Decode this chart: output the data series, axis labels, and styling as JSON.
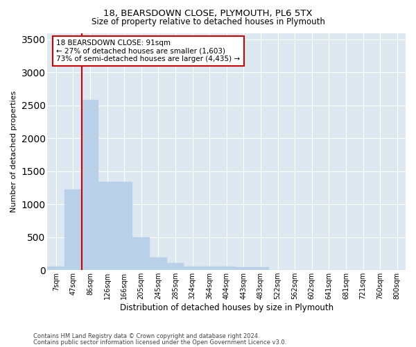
{
  "title1": "18, BEARSDOWN CLOSE, PLYMOUTH, PL6 5TX",
  "title2": "Size of property relative to detached houses in Plymouth",
  "xlabel": "Distribution of detached houses by size in Plymouth",
  "ylabel": "Number of detached properties",
  "bar_labels": [
    "7sqm",
    "47sqm",
    "86sqm",
    "126sqm",
    "166sqm",
    "205sqm",
    "245sqm",
    "285sqm",
    "324sqm",
    "364sqm",
    "404sqm",
    "443sqm",
    "483sqm",
    "522sqm",
    "562sqm",
    "602sqm",
    "641sqm",
    "681sqm",
    "721sqm",
    "760sqm",
    "800sqm"
  ],
  "bar_values": [
    55,
    1220,
    2580,
    1340,
    1335,
    500,
    195,
    110,
    55,
    50,
    50,
    40,
    40,
    0,
    0,
    0,
    0,
    0,
    0,
    0,
    0
  ],
  "bar_color": "#b8d0e8",
  "bar_edgecolor": "#b8d0e8",
  "vline_x_idx": 2,
  "vline_color": "#cc0000",
  "annotation_text": "18 BEARSDOWN CLOSE: 91sqm\n← 27% of detached houses are smaller (1,603)\n73% of semi-detached houses are larger (4,435) →",
  "annotation_box_color": "#ffffff",
  "annotation_box_edgecolor": "#cc0000",
  "ylim": [
    0,
    3600
  ],
  "yticks": [
    0,
    500,
    1000,
    1500,
    2000,
    2500,
    3000,
    3500
  ],
  "bg_color": "#dde8f0",
  "grid_color": "#ffffff",
  "footer1": "Contains HM Land Registry data © Crown copyright and database right 2024.",
  "footer2": "Contains public sector information licensed under the Open Government Licence v3.0."
}
